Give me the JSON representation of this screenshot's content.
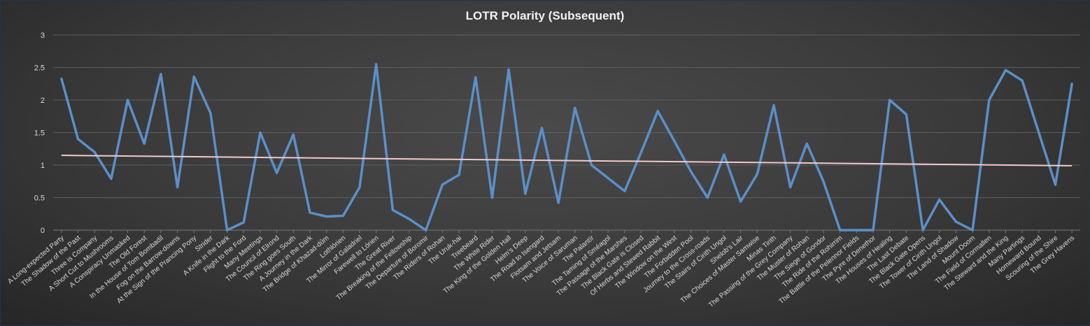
{
  "chart_data": {
    "type": "line",
    "title": "LOTR Polarity (Subsequent)",
    "xlabel": "",
    "ylabel": "",
    "ylim": [
      0,
      3
    ],
    "yticks": [
      "0",
      "0.5",
      "1",
      "1.5",
      "2",
      "2.5",
      "3"
    ],
    "grid": true,
    "colors": {
      "series": "#5b8fc9",
      "trend": "#f2c9c9"
    },
    "categories": [
      "A Long-expected Party",
      "The Shadow of the Past",
      "Three is Company",
      "A Short Cut to Mushrooms",
      "A Conspiracy Unmasked",
      "The Old Forest",
      "In the House of Tom Bombadil",
      "Fog on the Barrow-downs",
      "At the Sign of the Prancing Pony",
      "Strider",
      "A Knife in the Dark",
      "Flight to the Ford",
      "Many Meetings",
      "The Council of Elrond",
      "The Ring goes South",
      "A Journey in the Dark",
      "The Bridge of Khazad-dûm",
      "Lothlórien",
      "The Mirror of Galadriel",
      "Farewell to Lórien",
      "The Great River",
      "The Breaking of the Fellowship",
      "The Departure of Boromir",
      "The Riders of Rohan",
      "The Uruk-hai",
      "Treebeard",
      "The White Rider",
      "The King of the Golden Hall",
      "Helm's Deep",
      "The Road to Isengard",
      "Flotsam and Jetsam",
      "The Voice of Saruman",
      "The Palantír",
      "The Taming of Sméagol",
      "The Passage of the Marshes",
      "The Black Gate is Closed",
      "Of Herbs and Stewed Rabbit",
      "The Window on the West",
      "The Forbidden Pool",
      "Journey to the Cross-roads",
      "The Stairs of Cirith Ungol",
      "Shelob's Lair",
      "The Choices of Master Samwise",
      "Minas Tirith",
      "The Passing of the Grey Company",
      "The Muster of Rohan",
      "The Siege of Gondor",
      "The Ride of the Rohirrim",
      "The Battle of the Pelennor Fields",
      "The Pyre of Denethor",
      "The Houses of Healing",
      "The Last Debate",
      "The Black Gate Opens",
      "The Tower of Cirith Ungol",
      "The Land of Shadow",
      "Mount Doom",
      "The Field of Cormallen",
      "The Steward and the King",
      "Many Partings",
      "Homeward Bound",
      "Scouring of the Shire",
      "The Grey Havens"
    ],
    "series": [
      {
        "values": [
          2.33,
          1.4,
          1.2,
          0.79,
          2.0,
          1.33,
          2.4,
          0.66,
          2.36,
          1.8,
          0.0,
          0.12,
          1.5,
          0.88,
          1.47,
          0.27,
          0.21,
          0.22,
          0.66,
          2.55,
          0.31,
          0.17,
          0.0,
          0.7,
          0.85,
          2.35,
          0.5,
          2.47,
          0.56,
          1.57,
          0.42,
          1.88,
          1.0,
          0.8,
          0.6,
          1.2,
          1.83,
          1.37,
          0.9,
          0.5,
          1.16,
          0.44,
          0.86,
          1.92,
          0.66,
          1.33,
          0.75,
          0.0,
          0.0,
          0.0,
          2.0,
          1.78,
          0.0,
          0.47,
          0.13,
          0.0,
          2.0,
          2.46,
          2.3,
          1.5,
          0.7,
          2.25
        ]
      }
    ],
    "trendline": {
      "start": 1.15,
      "end": 0.99
    }
  }
}
